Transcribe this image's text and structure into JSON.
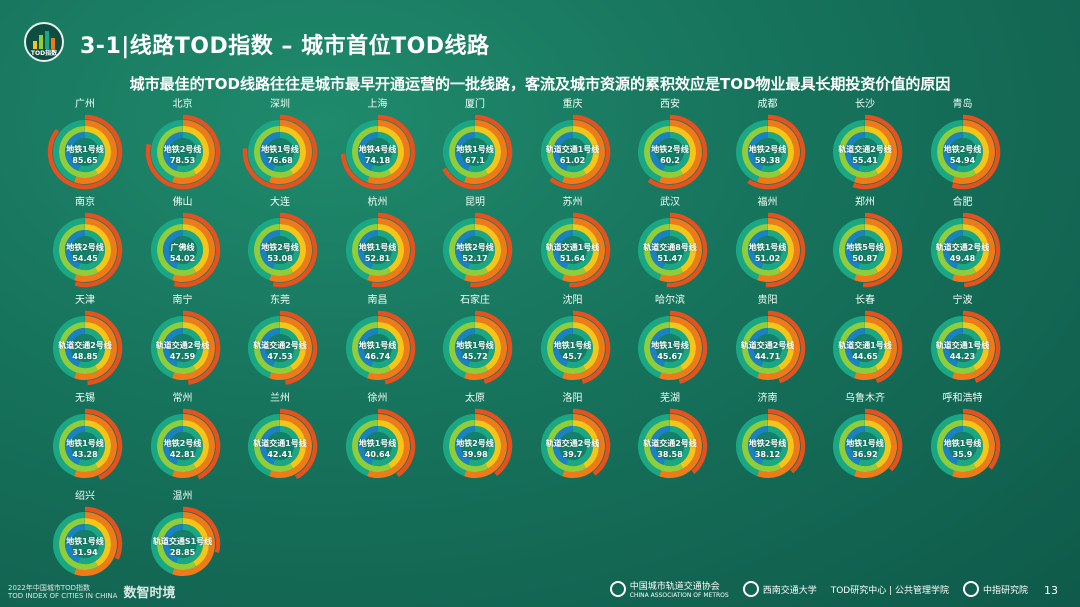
{
  "header": {
    "logo_text": "TOD指数",
    "title": "3-1|线路TOD指数 – 城市首位TOD线路",
    "subtitle": "城市最佳的TOD线路往往是城市最早开通运营的一批线路，客流及城市资源的累积效应是TOD物业最具长期投资价值的原因"
  },
  "colors": {
    "outer_ring": "#e8501e",
    "ring_orange": "#f07a1a",
    "ring_yellow": "#f5c518",
    "ring_green": "#8fce3a",
    "ring_teal": "#1aa884",
    "ring_blue": "#1a82c4",
    "center": "#15806a"
  },
  "cities": [
    {
      "city": "广州",
      "line": "地铁1号线",
      "value": 85.65
    },
    {
      "city": "北京",
      "line": "地铁2号线",
      "value": 78.53
    },
    {
      "city": "深圳",
      "line": "地铁1号线",
      "value": 76.68
    },
    {
      "city": "上海",
      "line": "地铁4号线",
      "value": 74.18
    },
    {
      "city": "厦门",
      "line": "地铁1号线",
      "value": 67.1
    },
    {
      "city": "重庆",
      "line": "轨道交通1号线",
      "value": 61.02
    },
    {
      "city": "西安",
      "line": "地铁2号线",
      "value": 60.2
    },
    {
      "city": "成都",
      "line": "地铁2号线",
      "value": 59.38
    },
    {
      "city": "长沙",
      "line": "轨道交通2号线",
      "value": 55.41
    },
    {
      "city": "青岛",
      "line": "地铁2号线",
      "value": 54.94
    },
    {
      "city": "南京",
      "line": "地铁2号线",
      "value": 54.45
    },
    {
      "city": "佛山",
      "line": "广佛线",
      "value": 54.02
    },
    {
      "city": "大连",
      "line": "地铁2号线",
      "value": 53.08
    },
    {
      "city": "杭州",
      "line": "地铁1号线",
      "value": 52.81
    },
    {
      "city": "昆明",
      "line": "地铁2号线",
      "value": 52.17
    },
    {
      "city": "苏州",
      "line": "轨道交通1号线",
      "value": 51.64
    },
    {
      "city": "武汉",
      "line": "轨道交通8号线",
      "value": 51.47
    },
    {
      "city": "福州",
      "line": "地铁1号线",
      "value": 51.02
    },
    {
      "city": "郑州",
      "line": "地铁5号线",
      "value": 50.87
    },
    {
      "city": "合肥",
      "line": "轨道交通2号线",
      "value": 49.48
    },
    {
      "city": "天津",
      "line": "轨道交通2号线",
      "value": 48.85
    },
    {
      "city": "南宁",
      "line": "轨道交通2号线",
      "value": 47.59
    },
    {
      "city": "东莞",
      "line": "轨道交通2号线",
      "value": 47.53
    },
    {
      "city": "南昌",
      "line": "地铁1号线",
      "value": 46.74
    },
    {
      "city": "石家庄",
      "line": "地铁1号线",
      "value": 45.72
    },
    {
      "city": "沈阳",
      "line": "地铁1号线",
      "value": 45.7
    },
    {
      "city": "哈尔滨",
      "line": "地铁1号线",
      "value": 45.67
    },
    {
      "city": "贵阳",
      "line": "轨道交通2号线",
      "value": 44.71
    },
    {
      "city": "长春",
      "line": "轨道交通1号线",
      "value": 44.65
    },
    {
      "city": "宁波",
      "line": "轨道交通1号线",
      "value": 44.23
    },
    {
      "city": "无锡",
      "line": "地铁1号线",
      "value": 43.28
    },
    {
      "city": "常州",
      "line": "地铁2号线",
      "value": 42.81
    },
    {
      "city": "兰州",
      "line": "轨道交通1号线",
      "value": 42.41
    },
    {
      "city": "徐州",
      "line": "地铁1号线",
      "value": 40.64
    },
    {
      "city": "太原",
      "line": "地铁2号线",
      "value": 39.98
    },
    {
      "city": "洛阳",
      "line": "轨道交通2号线",
      "value": 39.7
    },
    {
      "city": "芜湖",
      "line": "轨道交通2号线",
      "value": 38.58
    },
    {
      "city": "济南",
      "line": "地铁2号线",
      "value": 38.12
    },
    {
      "city": "乌鲁木齐",
      "line": "地铁1号线",
      "value": 36.92
    },
    {
      "city": "呼和浩特",
      "line": "地铁1号线",
      "value": 35.9
    },
    {
      "city": "绍兴",
      "line": "地铁1号线",
      "value": 31.94
    },
    {
      "city": "温州",
      "line": "轨道交通S1号线",
      "value": 28.85
    }
  ],
  "footer": {
    "report_small": "2022年中国城市TOD指数",
    "report_small_en": "TOD INDEX OF CITIES IN CHINA",
    "brand": "数智时境",
    "org1": "中国城市轨道交通协会",
    "org1_en": "CHINA ASSOCIATION OF METROS",
    "org2": "西南交通大学",
    "org3": "TOD研究中心 | 公共管理学院",
    "org4": "中指研究院",
    "page": "13"
  }
}
